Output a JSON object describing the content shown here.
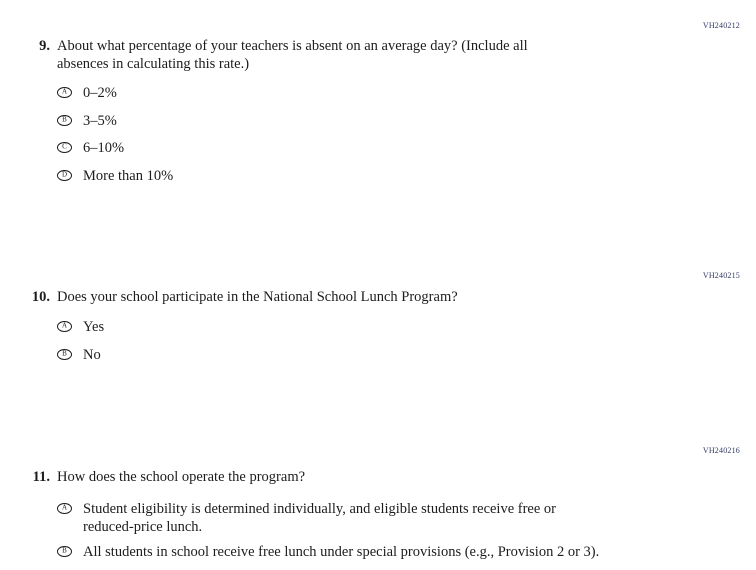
{
  "page": {
    "background_color": "#ffffff",
    "text_color": "#1c1c1c",
    "code_color": "#333a66"
  },
  "questions": [
    {
      "code": "VH240212",
      "number": "9.",
      "text": "About what percentage of your teachers is absent on an average day? (Include all\nabsences in calculating this rate.)",
      "options": [
        {
          "letter": "A",
          "label": "0–2%"
        },
        {
          "letter": "B",
          "label": "3–5%"
        },
        {
          "letter": "C",
          "label": "6–10%"
        },
        {
          "letter": "D",
          "label": "More than 10%"
        }
      ]
    },
    {
      "code": "VH240215",
      "number": "10.",
      "text": "Does your school participate in the National School Lunch Program?",
      "options": [
        {
          "letter": "A",
          "label": "Yes"
        },
        {
          "letter": "B",
          "label": "No"
        }
      ]
    },
    {
      "code": "VH240216",
      "number": "11.",
      "text": "How does the school operate the program?",
      "options": [
        {
          "letter": "A",
          "label": "Student eligibility is determined individually, and eligible students receive free or\nreduced-price lunch."
        },
        {
          "letter": "B",
          "label": "All students in school receive free lunch under special provisions (e.g., Provision 2 or 3)."
        }
      ]
    }
  ]
}
